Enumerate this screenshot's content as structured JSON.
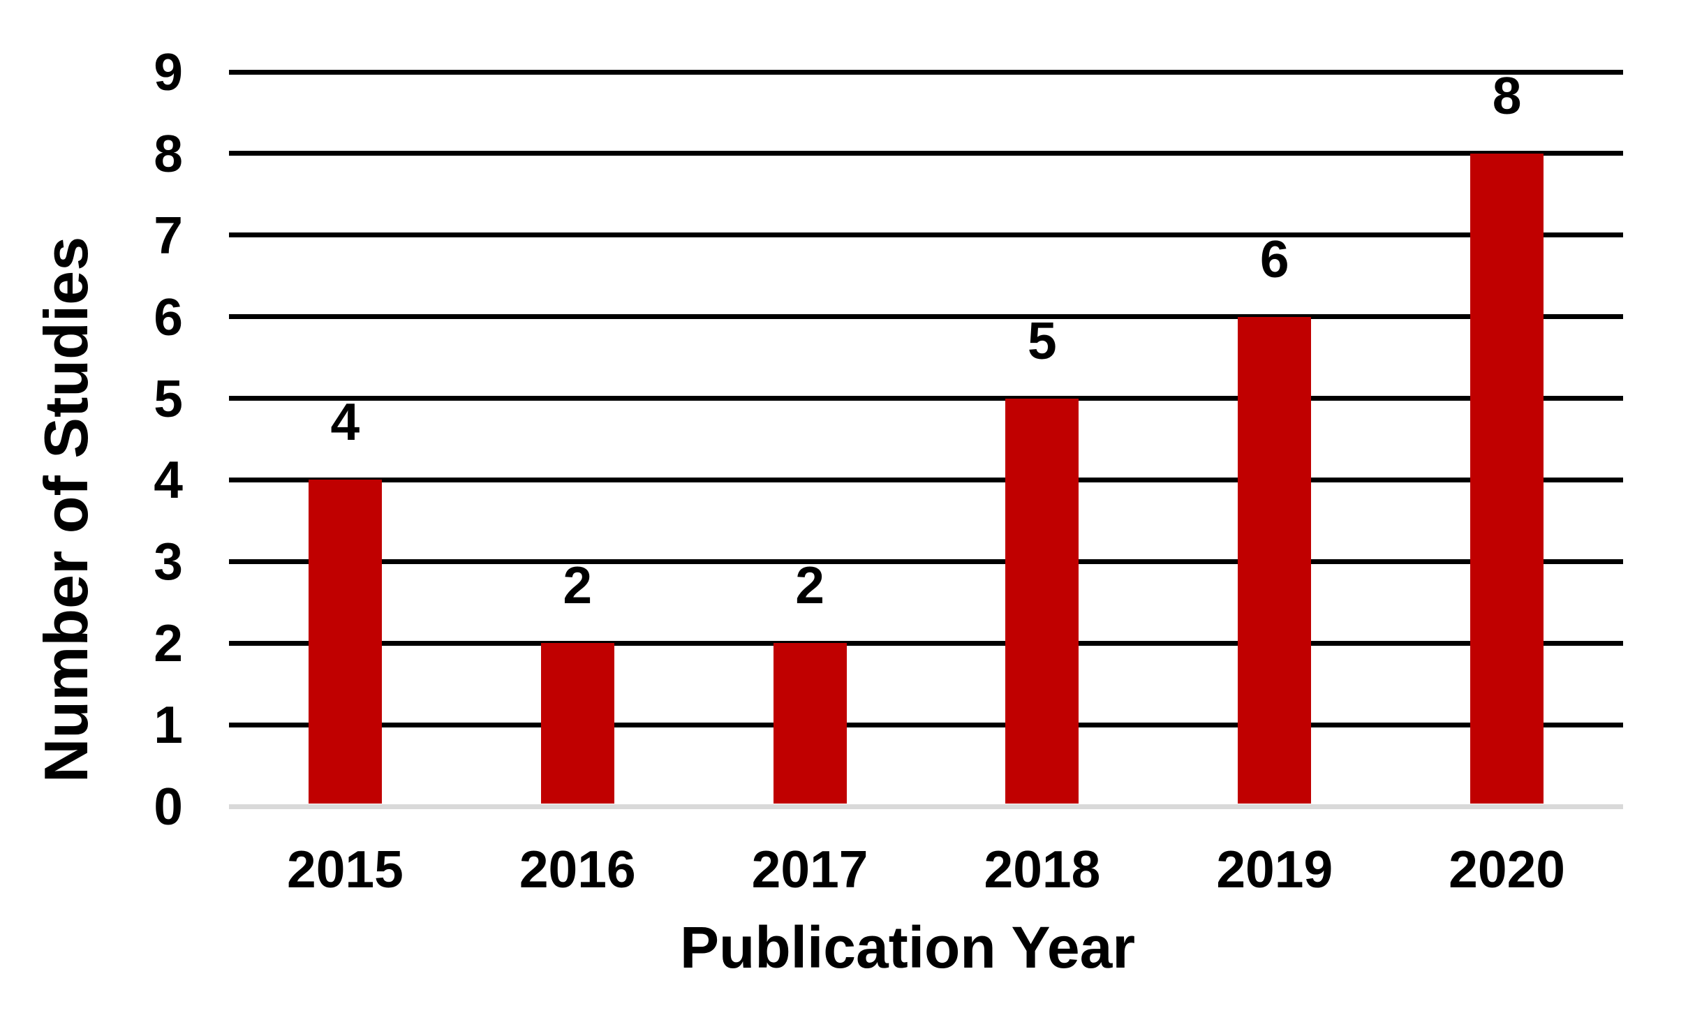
{
  "chart_data": {
    "type": "bar",
    "categories": [
      "2015",
      "2016",
      "2017",
      "2018",
      "2019",
      "2020"
    ],
    "values": [
      4,
      2,
      2,
      5,
      6,
      8
    ],
    "xlabel": "Publication Year",
    "ylabel": "Number of Studies",
    "ylim": [
      0,
      9
    ],
    "yticks": [
      0,
      1,
      2,
      3,
      4,
      5,
      6,
      7,
      8,
      9
    ],
    "grid": "horizontal",
    "legend": "none",
    "data_labels_shown": true,
    "colors": {
      "bar": "#C00000",
      "gridline": "#000000",
      "baseline": "#D9D9D9",
      "text": "#000000",
      "background": "#FFFFFF"
    }
  }
}
